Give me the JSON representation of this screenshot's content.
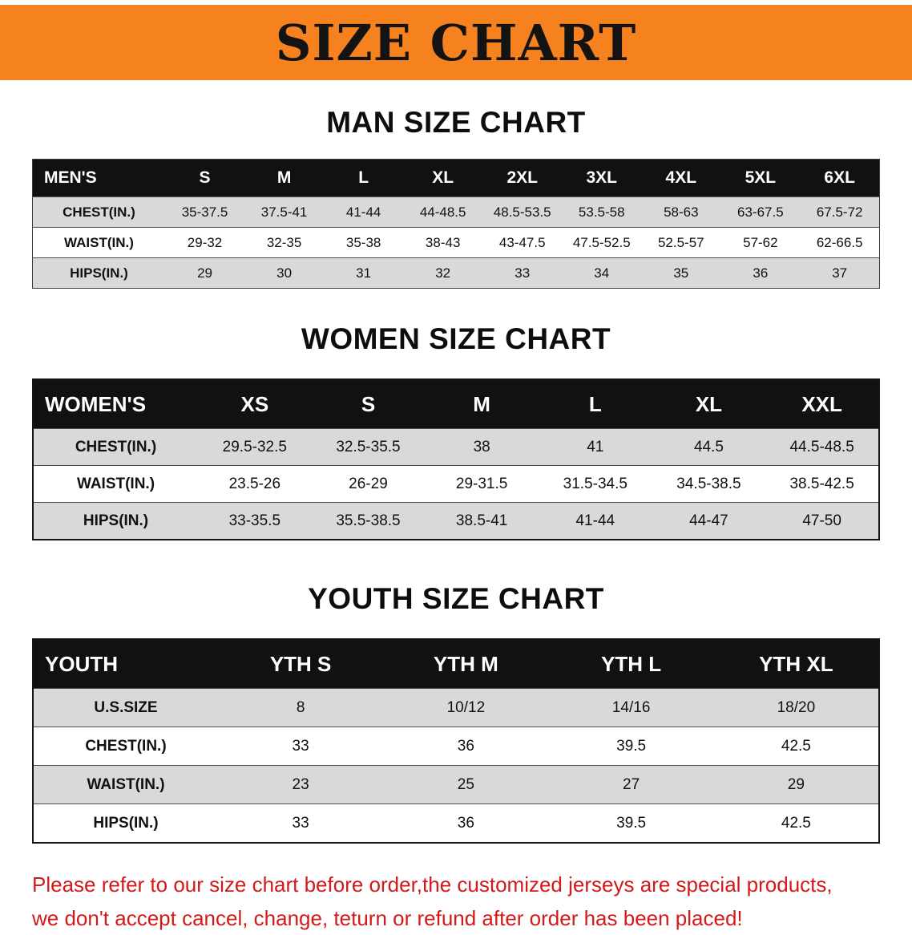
{
  "banner": {
    "title": "SIZE CHART"
  },
  "colors": {
    "banner_bg": "#f5821f",
    "banner_text": "#131313",
    "table_header_bg": "#111111",
    "table_header_text": "#ffffff",
    "row_stripe": "#d9d9d9",
    "disclaimer_text": "#d31a1a"
  },
  "sections": {
    "men": {
      "heading": "MAN SIZE CHART",
      "table": {
        "header": [
          "MEN'S",
          "S",
          "M",
          "L",
          "XL",
          "2XL",
          "3XL",
          "4XL",
          "5XL",
          "6XL"
        ],
        "rows": [
          [
            "CHEST(IN.)",
            "35-37.5",
            "37.5-41",
            "41-44",
            "44-48.5",
            "48.5-53.5",
            "53.5-58",
            "58-63",
            "63-67.5",
            "67.5-72"
          ],
          [
            "WAIST(IN.)",
            "29-32",
            "32-35",
            "35-38",
            "38-43",
            "43-47.5",
            "47.5-52.5",
            "52.5-57",
            "57-62",
            "62-66.5"
          ],
          [
            "HIPS(IN.)",
            "29",
            "30",
            "31",
            "32",
            "33",
            "34",
            "35",
            "36",
            "37"
          ]
        ]
      }
    },
    "women": {
      "heading": "WOMEN SIZE CHART",
      "table": {
        "header": [
          "WOMEN'S",
          "XS",
          "S",
          "M",
          "L",
          "XL",
          "XXL"
        ],
        "rows": [
          [
            "CHEST(IN.)",
            "29.5-32.5",
            "32.5-35.5",
            "38",
            "41",
            "44.5",
            "44.5-48.5"
          ],
          [
            "WAIST(IN.)",
            "23.5-26",
            "26-29",
            "29-31.5",
            "31.5-34.5",
            "34.5-38.5",
            "38.5-42.5"
          ],
          [
            "HIPS(IN.)",
            "33-35.5",
            "35.5-38.5",
            "38.5-41",
            "41-44",
            "44-47",
            "47-50"
          ]
        ]
      }
    },
    "youth": {
      "heading": "YOUTH SIZE CHART",
      "table": {
        "header": [
          "YOUTH",
          "YTH S",
          "YTH M",
          "YTH L",
          "YTH XL"
        ],
        "rows": [
          [
            "U.S.SIZE",
            "8",
            "10/12",
            "14/16",
            "18/20"
          ],
          [
            "CHEST(IN.)",
            "33",
            "36",
            "39.5",
            "42.5"
          ],
          [
            "WAIST(IN.)",
            "23",
            "25",
            "27",
            "29"
          ],
          [
            "HIPS(IN.)",
            "33",
            "36",
            "39.5",
            "42.5"
          ]
        ]
      }
    }
  },
  "disclaimer": {
    "line1": "Please refer to our size chart before order,the customized jerseys are special products,",
    "line2": "we don't accept cancel, change, teturn or refund after order has been placed!"
  }
}
